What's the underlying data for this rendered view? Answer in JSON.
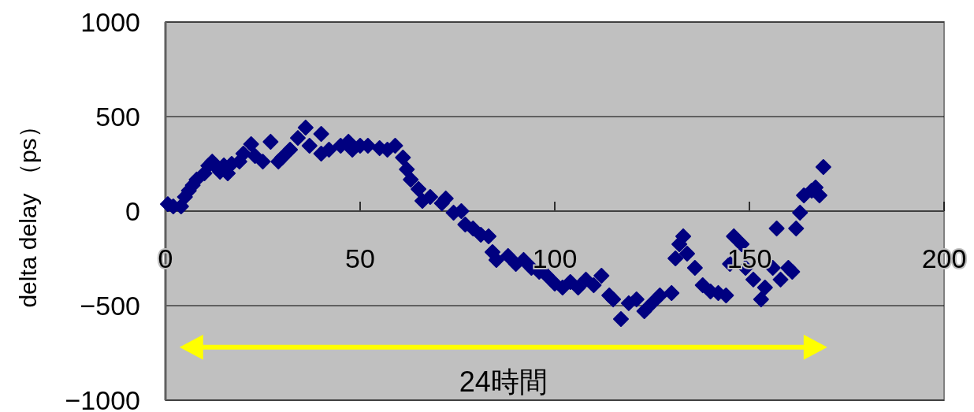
{
  "chart_data": {
    "type": "scatter",
    "ylabel": "delta delay （ps）",
    "annotations": [
      "24時間"
    ],
    "color": "#000080",
    "marker": "diamond",
    "grid": "y",
    "xlim": [
      0,
      200
    ],
    "ylim": [
      -1000,
      1000
    ],
    "xticks": [
      0,
      50,
      100,
      150,
      200
    ],
    "yticks": [
      -1000,
      -500,
      0,
      500,
      1000
    ],
    "x": [
      0.6,
      2,
      4,
      5,
      6,
      7,
      8,
      10,
      11,
      12,
      13,
      14,
      15,
      16,
      17,
      19,
      20,
      22,
      23,
      25,
      27,
      29,
      30,
      32,
      34,
      36,
      37,
      40,
      40,
      42,
      45,
      47,
      48,
      50,
      52,
      55,
      57,
      59,
      61,
      62,
      63,
      65,
      66,
      68,
      71,
      72,
      74,
      76,
      77,
      79,
      81,
      83,
      84,
      85,
      88,
      90,
      92,
      94,
      96,
      98,
      100,
      102,
      104,
      106,
      108,
      110,
      112,
      114,
      115,
      117,
      119,
      121,
      123,
      125,
      127,
      130,
      131,
      132,
      133,
      134,
      136,
      138,
      140,
      142,
      144,
      145,
      146,
      148,
      149,
      151,
      153,
      154,
      156,
      157,
      158,
      160,
      161,
      162,
      163,
      164,
      166,
      167,
      168,
      169
    ],
    "values": [
      37,
      25,
      25,
      75,
      108,
      137,
      167,
      200,
      240,
      262,
      233,
      208,
      242,
      200,
      250,
      262,
      304,
      354,
      292,
      262,
      367,
      262,
      283,
      325,
      387,
      442,
      346,
      408,
      304,
      325,
      346,
      367,
      325,
      346,
      346,
      333,
      325,
      346,
      283,
      221,
      167,
      117,
      54,
      75,
      42,
      67,
      -8,
      0,
      -71,
      -92,
      -125,
      -133,
      -217,
      -258,
      -237,
      -279,
      -258,
      -300,
      -321,
      -342,
      -383,
      -404,
      -375,
      -404,
      -362,
      -392,
      -342,
      -446,
      -467,
      -571,
      -487,
      -467,
      -529,
      -487,
      -446,
      -433,
      -250,
      -175,
      -133,
      -225,
      -300,
      -392,
      -425,
      -433,
      -446,
      -279,
      -133,
      -175,
      -300,
      -362,
      -467,
      -404,
      -300,
      -92,
      -362,
      -300,
      -321,
      -92,
      -8,
      83,
      108,
      125,
      83,
      233
    ]
  }
}
